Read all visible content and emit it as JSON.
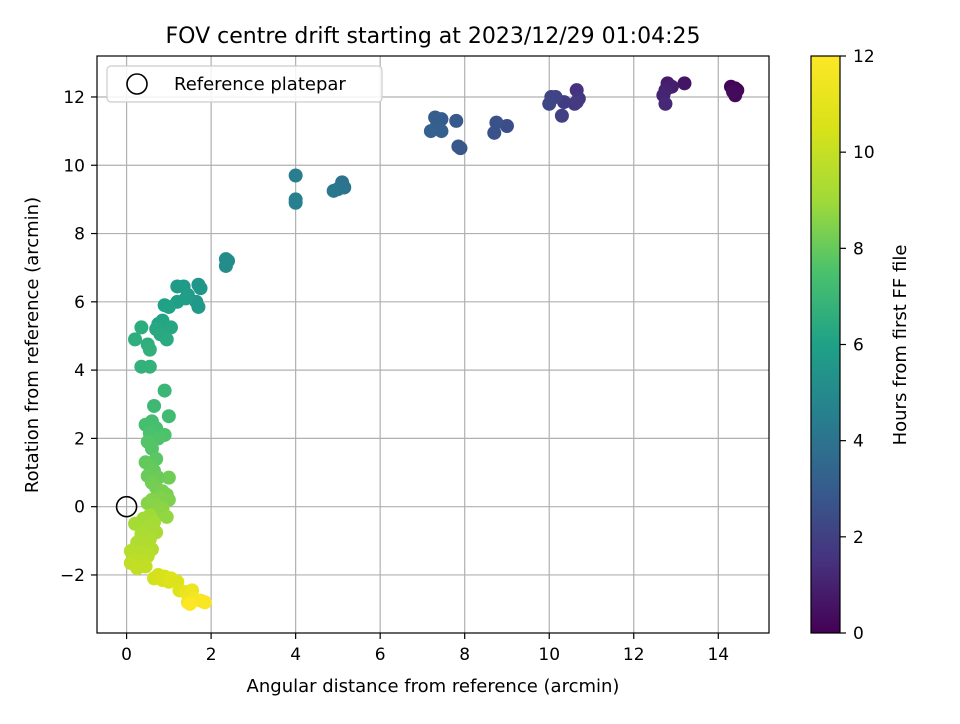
{
  "chart_data": {
    "type": "scatter",
    "title": "FOV centre drift starting at 2023/12/29 01:04:25",
    "xlabel": "Angular distance from reference (arcmin)",
    "ylabel": "Rotation from reference (arcmin)",
    "xlim": [
      -0.7,
      15.2
    ],
    "ylim": [
      -3.7,
      13.2
    ],
    "xticks": [
      0,
      2,
      4,
      6,
      8,
      10,
      12,
      14
    ],
    "yticks": [
      -2,
      0,
      2,
      4,
      6,
      8,
      10,
      12
    ],
    "xtick_labels": [
      "0",
      "2",
      "4",
      "6",
      "8",
      "10",
      "12",
      "14"
    ],
    "ytick_labels": [
      "−2",
      "0",
      "2",
      "4",
      "6",
      "8",
      "10",
      "12"
    ],
    "grid": true,
    "legend": {
      "position": "top-left",
      "entries": [
        "Reference platepar"
      ]
    },
    "reference_point": {
      "label": "Reference platepar",
      "x": 0,
      "y": 0
    },
    "colorbar": {
      "label": "Hours from first FF file",
      "colormap": "viridis",
      "min": 0,
      "max": 12,
      "ticks": [
        0,
        2,
        4,
        6,
        8,
        10,
        12
      ],
      "tick_labels": [
        "0",
        "2",
        "4",
        "6",
        "8",
        "10",
        "12"
      ]
    },
    "points": [
      {
        "x": 14.4,
        "y": 12.25,
        "h": 0.0
      },
      {
        "x": 14.3,
        "y": 12.3,
        "h": 0.1
      },
      {
        "x": 14.45,
        "y": 12.2,
        "h": 0.15
      },
      {
        "x": 14.4,
        "y": 12.05,
        "h": 0.2
      },
      {
        "x": 14.35,
        "y": 12.15,
        "h": 0.3
      },
      {
        "x": 13.2,
        "y": 12.4,
        "h": 0.6
      },
      {
        "x": 12.8,
        "y": 12.4,
        "h": 0.8
      },
      {
        "x": 12.9,
        "y": 12.3,
        "h": 0.9
      },
      {
        "x": 12.75,
        "y": 12.2,
        "h": 1.0
      },
      {
        "x": 12.7,
        "y": 12.05,
        "h": 1.1
      },
      {
        "x": 12.75,
        "y": 11.8,
        "h": 1.2
      },
      {
        "x": 10.65,
        "y": 12.2,
        "h": 1.5
      },
      {
        "x": 10.7,
        "y": 11.95,
        "h": 1.6
      },
      {
        "x": 10.6,
        "y": 11.8,
        "h": 1.7
      },
      {
        "x": 10.65,
        "y": 11.85,
        "h": 1.8
      },
      {
        "x": 10.35,
        "y": 11.85,
        "h": 1.9
      },
      {
        "x": 10.3,
        "y": 11.45,
        "h": 2.0
      },
      {
        "x": 10.15,
        "y": 12.0,
        "h": 2.1
      },
      {
        "x": 10.05,
        "y": 12.0,
        "h": 2.15
      },
      {
        "x": 10.0,
        "y": 11.8,
        "h": 2.2
      },
      {
        "x": 9.0,
        "y": 11.15,
        "h": 2.5
      },
      {
        "x": 8.75,
        "y": 11.25,
        "h": 2.6
      },
      {
        "x": 8.7,
        "y": 10.95,
        "h": 2.65
      },
      {
        "x": 7.9,
        "y": 10.5,
        "h": 2.8
      },
      {
        "x": 7.85,
        "y": 10.55,
        "h": 2.85
      },
      {
        "x": 7.8,
        "y": 11.3,
        "h": 2.9
      },
      {
        "x": 7.45,
        "y": 11.35,
        "h": 3.0
      },
      {
        "x": 7.3,
        "y": 11.4,
        "h": 3.05
      },
      {
        "x": 7.35,
        "y": 11.2,
        "h": 3.1
      },
      {
        "x": 7.45,
        "y": 11.0,
        "h": 3.15
      },
      {
        "x": 7.2,
        "y": 11.0,
        "h": 3.2
      },
      {
        "x": 5.1,
        "y": 9.5,
        "h": 4.0
      },
      {
        "x": 5.15,
        "y": 9.35,
        "h": 4.05
      },
      {
        "x": 5.0,
        "y": 9.3,
        "h": 4.1
      },
      {
        "x": 4.9,
        "y": 9.25,
        "h": 4.15
      },
      {
        "x": 4.0,
        "y": 9.7,
        "h": 4.4
      },
      {
        "x": 4.0,
        "y": 9.0,
        "h": 4.5
      },
      {
        "x": 4.0,
        "y": 8.9,
        "h": 4.55
      },
      {
        "x": 2.35,
        "y": 7.25,
        "h": 5.0
      },
      {
        "x": 2.4,
        "y": 7.2,
        "h": 5.05
      },
      {
        "x": 2.35,
        "y": 7.05,
        "h": 5.1
      },
      {
        "x": 1.7,
        "y": 6.5,
        "h": 5.5
      },
      {
        "x": 1.75,
        "y": 6.4,
        "h": 5.55
      },
      {
        "x": 1.65,
        "y": 6.0,
        "h": 5.6
      },
      {
        "x": 1.7,
        "y": 5.85,
        "h": 5.65
      },
      {
        "x": 1.35,
        "y": 6.45,
        "h": 5.7
      },
      {
        "x": 1.2,
        "y": 6.45,
        "h": 5.75
      },
      {
        "x": 1.45,
        "y": 6.2,
        "h": 5.8
      },
      {
        "x": 1.4,
        "y": 6.1,
        "h": 5.85
      },
      {
        "x": 1.2,
        "y": 6.0,
        "h": 5.9
      },
      {
        "x": 0.9,
        "y": 5.9,
        "h": 6.0
      },
      {
        "x": 1.0,
        "y": 5.85,
        "h": 6.05
      },
      {
        "x": 0.85,
        "y": 5.45,
        "h": 6.1
      },
      {
        "x": 0.75,
        "y": 5.35,
        "h": 6.15
      },
      {
        "x": 0.9,
        "y": 5.3,
        "h": 6.2
      },
      {
        "x": 1.05,
        "y": 5.25,
        "h": 6.25
      },
      {
        "x": 0.7,
        "y": 5.2,
        "h": 6.3
      },
      {
        "x": 0.8,
        "y": 5.05,
        "h": 6.35
      },
      {
        "x": 0.95,
        "y": 4.9,
        "h": 6.4
      },
      {
        "x": 0.35,
        "y": 5.25,
        "h": 6.5
      },
      {
        "x": 0.2,
        "y": 4.9,
        "h": 6.55
      },
      {
        "x": 0.5,
        "y": 4.75,
        "h": 6.6
      },
      {
        "x": 0.55,
        "y": 4.6,
        "h": 6.65
      },
      {
        "x": 0.35,
        "y": 4.1,
        "h": 6.7
      },
      {
        "x": 0.55,
        "y": 4.1,
        "h": 6.75
      },
      {
        "x": 0.9,
        "y": 3.4,
        "h": 7.0
      },
      {
        "x": 0.65,
        "y": 2.95,
        "h": 7.1
      },
      {
        "x": 1.0,
        "y": 2.65,
        "h": 7.2
      },
      {
        "x": 0.6,
        "y": 2.5,
        "h": 7.3
      },
      {
        "x": 0.45,
        "y": 2.4,
        "h": 7.35
      },
      {
        "x": 0.7,
        "y": 2.3,
        "h": 7.4
      },
      {
        "x": 0.55,
        "y": 2.15,
        "h": 7.5
      },
      {
        "x": 0.9,
        "y": 2.1,
        "h": 7.55
      },
      {
        "x": 0.75,
        "y": 2.0,
        "h": 7.6
      },
      {
        "x": 0.5,
        "y": 1.9,
        "h": 7.65
      },
      {
        "x": 0.6,
        "y": 1.7,
        "h": 7.7
      },
      {
        "x": 0.7,
        "y": 1.4,
        "h": 7.8
      },
      {
        "x": 0.45,
        "y": 1.3,
        "h": 7.9
      },
      {
        "x": 0.55,
        "y": 1.2,
        "h": 7.95
      },
      {
        "x": 0.65,
        "y": 1.05,
        "h": 8.0
      },
      {
        "x": 0.5,
        "y": 0.9,
        "h": 8.05
      },
      {
        "x": 0.75,
        "y": 0.85,
        "h": 8.1
      },
      {
        "x": 1.0,
        "y": 0.85,
        "h": 8.15
      },
      {
        "x": 0.6,
        "y": 0.7,
        "h": 8.2
      },
      {
        "x": 0.7,
        "y": 0.55,
        "h": 8.25
      },
      {
        "x": 0.85,
        "y": 0.45,
        "h": 8.3
      },
      {
        "x": 0.95,
        "y": 0.35,
        "h": 8.35
      },
      {
        "x": 1.0,
        "y": 0.2,
        "h": 8.4
      },
      {
        "x": 0.8,
        "y": 0.25,
        "h": 8.45
      },
      {
        "x": 0.6,
        "y": 0.2,
        "h": 8.5
      },
      {
        "x": 0.5,
        "y": 0.1,
        "h": 8.55
      },
      {
        "x": 0.7,
        "y": 0.05,
        "h": 8.6
      },
      {
        "x": 0.85,
        "y": -0.05,
        "h": 8.65
      },
      {
        "x": 0.75,
        "y": -0.15,
        "h": 8.7
      },
      {
        "x": 0.95,
        "y": -0.3,
        "h": 8.75
      },
      {
        "x": 0.55,
        "y": -0.25,
        "h": 9.0
      },
      {
        "x": 0.4,
        "y": -0.35,
        "h": 9.05
      },
      {
        "x": 0.65,
        "y": -0.45,
        "h": 9.1
      },
      {
        "x": 0.2,
        "y": -0.5,
        "h": 9.15
      },
      {
        "x": 0.5,
        "y": -0.6,
        "h": 9.2
      },
      {
        "x": 0.7,
        "y": -0.75,
        "h": 9.25
      },
      {
        "x": 0.35,
        "y": -0.8,
        "h": 9.3
      },
      {
        "x": 0.55,
        "y": -0.95,
        "h": 9.35
      },
      {
        "x": 0.25,
        "y": -1.05,
        "h": 9.4
      },
      {
        "x": 0.45,
        "y": -1.15,
        "h": 9.45
      },
      {
        "x": 0.6,
        "y": -1.25,
        "h": 9.5
      },
      {
        "x": 0.1,
        "y": -1.3,
        "h": 9.55
      },
      {
        "x": 0.35,
        "y": -1.35,
        "h": 9.6
      },
      {
        "x": 0.5,
        "y": -1.45,
        "h": 9.65
      },
      {
        "x": 0.2,
        "y": -1.55,
        "h": 9.7
      },
      {
        "x": 0.4,
        "y": -1.6,
        "h": 9.75
      },
      {
        "x": 0.1,
        "y": -1.65,
        "h": 9.8
      },
      {
        "x": 0.25,
        "y": -1.8,
        "h": 9.9
      },
      {
        "x": 0.45,
        "y": -1.75,
        "h": 9.95
      },
      {
        "x": 0.65,
        "y": -2.1,
        "h": 10.3
      },
      {
        "x": 0.75,
        "y": -2.0,
        "h": 10.4
      },
      {
        "x": 0.9,
        "y": -2.05,
        "h": 10.5
      },
      {
        "x": 0.85,
        "y": -2.15,
        "h": 10.55
      },
      {
        "x": 1.0,
        "y": -2.2,
        "h": 10.6
      },
      {
        "x": 1.05,
        "y": -2.1,
        "h": 10.65
      },
      {
        "x": 1.2,
        "y": -2.2,
        "h": 10.7
      },
      {
        "x": 1.25,
        "y": -2.45,
        "h": 10.8
      },
      {
        "x": 1.4,
        "y": -2.5,
        "h": 11.2
      },
      {
        "x": 1.55,
        "y": -2.45,
        "h": 11.3
      },
      {
        "x": 1.5,
        "y": -2.65,
        "h": 11.4
      },
      {
        "x": 1.45,
        "y": -2.8,
        "h": 11.5
      },
      {
        "x": 1.6,
        "y": -2.7,
        "h": 11.6
      },
      {
        "x": 1.75,
        "y": -2.75,
        "h": 11.7
      },
      {
        "x": 1.85,
        "y": -2.8,
        "h": 11.8
      },
      {
        "x": 1.5,
        "y": -2.85,
        "h": 12.0
      }
    ]
  }
}
